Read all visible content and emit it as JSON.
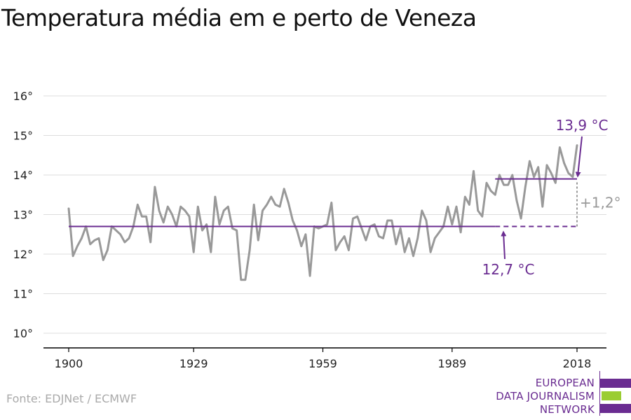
{
  "title": "Temperatura média em e perto de Veneza",
  "source": "Fonte: EDJNet / ECMWF",
  "logo": {
    "lines": [
      "EUROPEAN",
      "DATA JOURNALISM",
      "NETWORK"
    ],
    "colors": {
      "purple": "#6a2c91",
      "green": "#9acd32"
    }
  },
  "colors": {
    "series": "#999999",
    "annotation": "#6a2c91",
    "difference": "#999999",
    "grid": "#dddddd",
    "axis": "#000000"
  },
  "chart_data": {
    "type": "line",
    "title": "Temperatura média em e perto de Veneza",
    "xlabel": "",
    "ylabel": "",
    "xlim": [
      1900,
      2018
    ],
    "ylim": [
      10,
      16
    ],
    "x_ticks": [
      1900,
      1929,
      1959,
      1989,
      2018
    ],
    "x_tick_labels": [
      "1900",
      "1929",
      "1959",
      "1989",
      "2018"
    ],
    "y_ticks": [
      10,
      11,
      12,
      13,
      14,
      15,
      16
    ],
    "y_tick_labels": [
      "10°",
      "11°",
      "12°",
      "13°",
      "14°",
      "15°",
      "16°"
    ],
    "grid": true,
    "legend": "none",
    "x": [
      1900,
      1901,
      1902,
      1903,
      1904,
      1905,
      1906,
      1907,
      1908,
      1909,
      1910,
      1911,
      1912,
      1913,
      1914,
      1915,
      1916,
      1917,
      1918,
      1919,
      1920,
      1921,
      1922,
      1923,
      1924,
      1925,
      1926,
      1927,
      1928,
      1929,
      1930,
      1931,
      1932,
      1933,
      1934,
      1935,
      1936,
      1937,
      1938,
      1939,
      1940,
      1941,
      1942,
      1943,
      1944,
      1945,
      1946,
      1947,
      1948,
      1949,
      1950,
      1951,
      1952,
      1953,
      1954,
      1955,
      1956,
      1957,
      1958,
      1959,
      1960,
      1961,
      1962,
      1963,
      1964,
      1965,
      1966,
      1967,
      1968,
      1969,
      1970,
      1971,
      1972,
      1973,
      1974,
      1975,
      1976,
      1977,
      1978,
      1979,
      1980,
      1981,
      1982,
      1983,
      1984,
      1985,
      1986,
      1987,
      1988,
      1989,
      1990,
      1991,
      1992,
      1993,
      1994,
      1995,
      1996,
      1997,
      1998,
      1999,
      2000,
      2001,
      2002,
      2003,
      2004,
      2005,
      2006,
      2007,
      2008,
      2009,
      2010,
      2011,
      2012,
      2013,
      2014,
      2015,
      2016,
      2017,
      2018
    ],
    "series": [
      {
        "values": [
          13.15,
          11.95,
          12.2,
          12.4,
          12.7,
          12.25,
          12.35,
          12.4,
          11.85,
          12.1,
          12.7,
          12.6,
          12.5,
          12.3,
          12.4,
          12.7,
          13.25,
          12.95,
          12.95,
          12.3,
          13.7,
          13.1,
          12.8,
          13.2,
          13.0,
          12.7,
          13.2,
          13.1,
          12.95,
          12.05,
          13.2,
          12.6,
          12.75,
          12.05,
          13.45,
          12.75,
          13.1,
          13.2,
          12.65,
          12.6,
          11.35,
          11.35,
          12.1,
          13.25,
          12.35,
          13.1,
          13.25,
          13.45,
          13.25,
          13.2,
          13.65,
          13.3,
          12.85,
          12.6,
          12.2,
          12.5,
          11.45,
          12.7,
          12.65,
          12.7,
          12.75,
          13.3,
          12.1,
          12.3,
          12.45,
          12.1,
          12.9,
          12.95,
          12.65,
          12.35,
          12.7,
          12.75,
          12.45,
          12.4,
          12.85,
          12.85,
          12.25,
          12.65,
          12.05,
          12.4,
          11.95,
          12.4,
          13.1,
          12.85,
          12.05,
          12.4,
          12.55,
          12.7,
          13.2,
          12.75,
          13.2,
          12.55,
          13.45,
          13.25,
          14.1,
          13.1,
          12.95,
          13.8,
          13.6,
          13.5,
          14.0,
          13.75,
          13.75,
          14.0,
          13.35,
          12.9,
          13.7,
          14.35,
          13.95,
          14.2,
          13.2,
          14.25,
          14.05,
          13.8,
          14.7,
          14.3,
          14.05,
          13.95,
          14.75
        ]
      }
    ],
    "reference_lines": [
      {
        "label": "12,7 °C",
        "value": 12.7,
        "from": 1900,
        "to": 1999,
        "style": "solid",
        "extension_to": 2018,
        "extension_style": "dashed"
      },
      {
        "label": "13,9 °C",
        "value": 13.9,
        "from": 1999,
        "to": 2018,
        "style": "solid"
      }
    ],
    "difference": {
      "label": "+1,2°",
      "from": 12.7,
      "to": 13.9,
      "at": 2018
    }
  }
}
